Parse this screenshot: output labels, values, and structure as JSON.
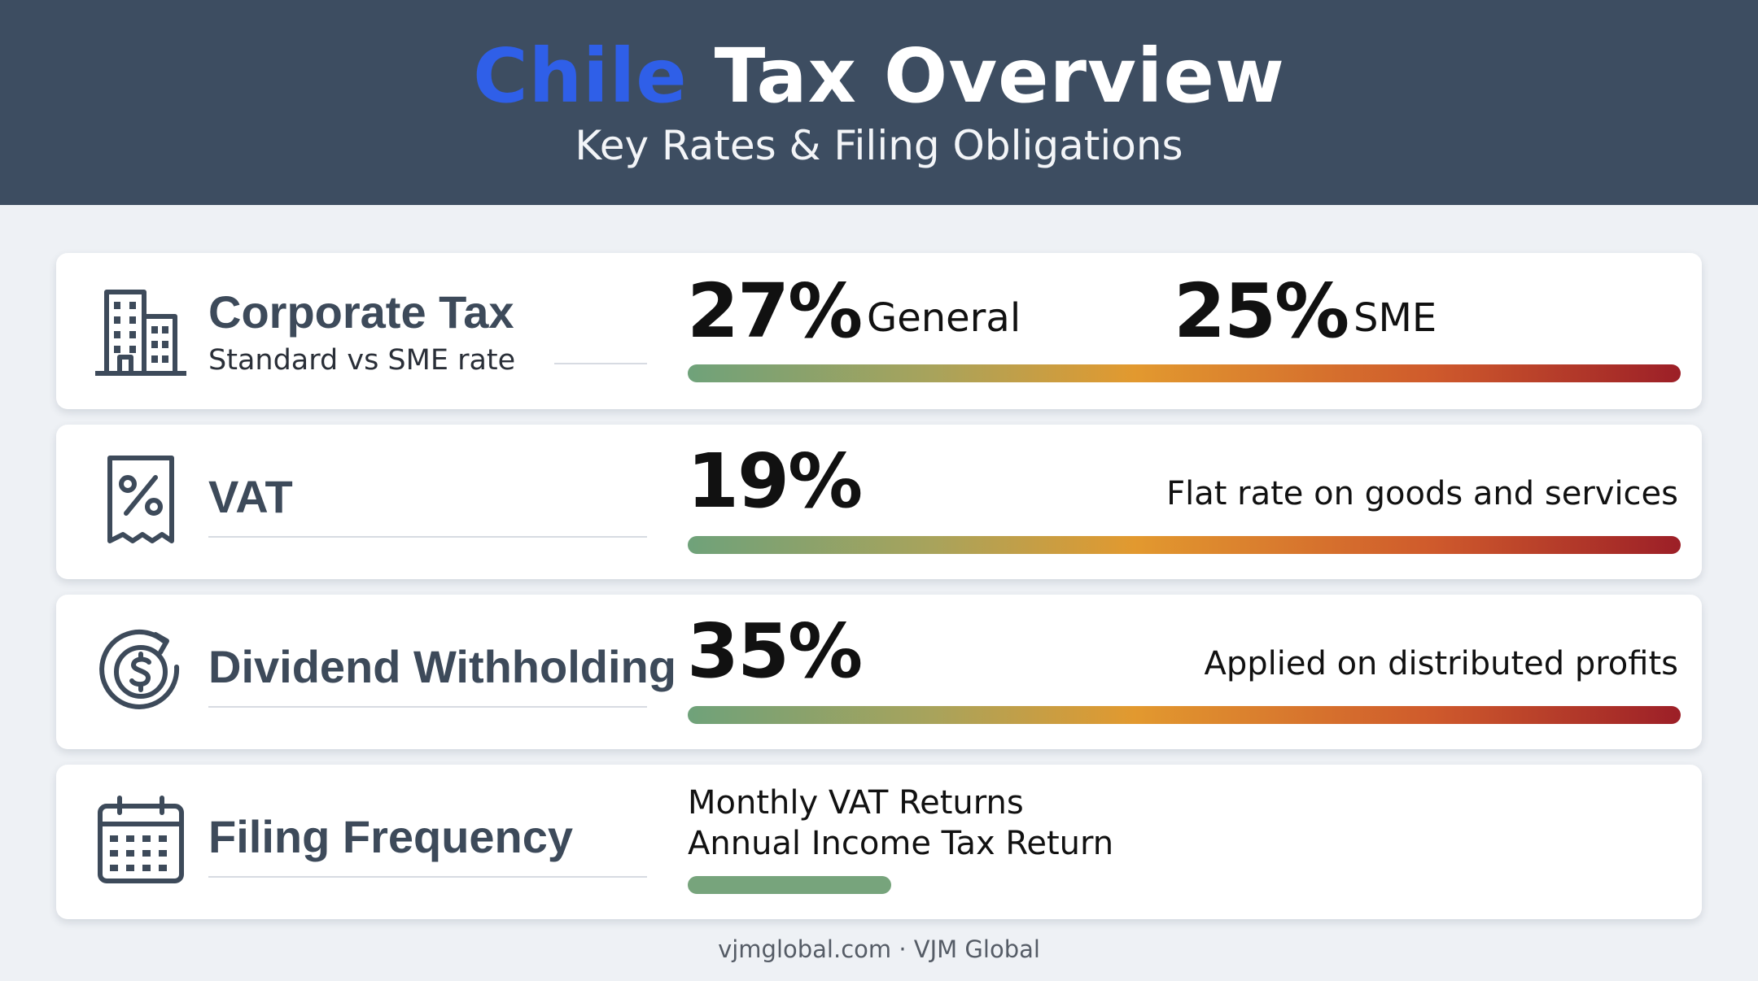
{
  "header": {
    "title_accent": "Chile",
    "title_rest": "Tax Overview",
    "subtitle": "Key Rates & Filing Obligations"
  },
  "colors": {
    "header_bg": "#3d4d61",
    "title_accent": "#2f5fe8",
    "bar_start": "#6fa27a",
    "bar_mid": "#e2992f",
    "bar_end": "#9c1f27"
  },
  "cards": {
    "corporate": {
      "icon": "building-icon",
      "label": "Corporate Tax",
      "sublabel": "Standard vs SME rate",
      "rate1": "27%",
      "rate1_note": "General",
      "rate2": "25%",
      "rate2_note": "SME"
    },
    "vat": {
      "icon": "receipt-percent-icon",
      "label": "VAT",
      "rate": "19%",
      "description": "Flat rate on goods and services"
    },
    "dividend": {
      "icon": "dollar-cycle-icon",
      "label": "Dividend Withholding",
      "rate": "35%",
      "description": "Applied on distributed profits"
    },
    "filing": {
      "icon": "calendar-icon",
      "label": "Filing Frequency",
      "line1": "Monthly VAT Returns",
      "line2": "Annual Income Tax Return"
    }
  },
  "footer": {
    "text": "vjmglobal.com · VJM Global"
  }
}
